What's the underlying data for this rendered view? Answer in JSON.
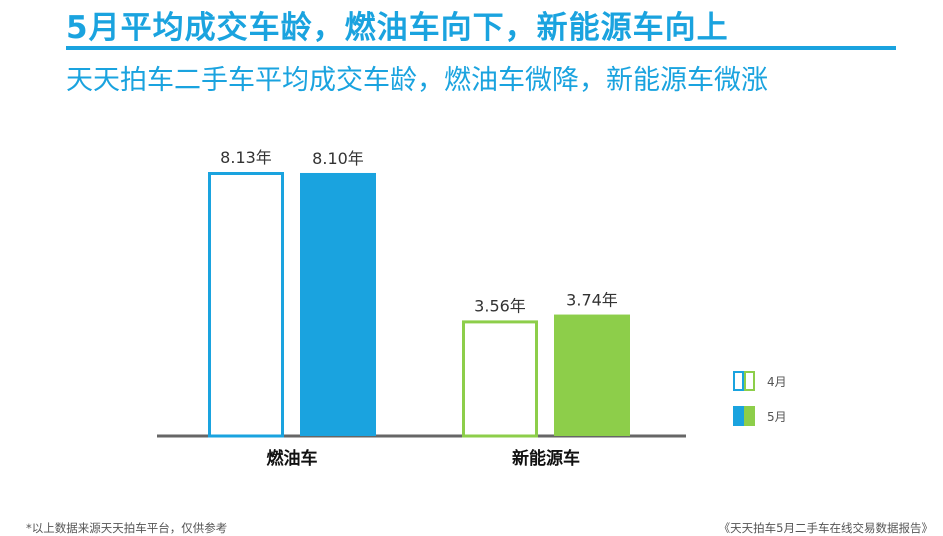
{
  "header": {
    "title": "5月平均成交车龄，燃油车向下，新能源车向上",
    "subtitle": "天天拍车二手车平均成交车龄，燃油车微降，新能源车微涨"
  },
  "footer": {
    "note": "*以上数据来源天天拍车平台，仅供参考",
    "source": "《天天拍车5月二手车在线交易数据报告》"
  },
  "colors": {
    "fuel": "#1aa3df",
    "ev": "#8dce4a",
    "axis": "#666666",
    "accent": "#1aa3df"
  },
  "chart_data": {
    "type": "bar",
    "categories": [
      "燃油车",
      "新能源车"
    ],
    "series": [
      {
        "name": "4月",
        "values": [
          8.13,
          3.56
        ],
        "labels": [
          "8.13年",
          "3.56年"
        ],
        "style": "outline"
      },
      {
        "name": "5月",
        "values": [
          8.1,
          3.74
        ],
        "labels": [
          "8.10年",
          "3.74年"
        ],
        "style": "filled"
      }
    ],
    "ylim": [
      0,
      9
    ],
    "unit": "年",
    "grid": false,
    "legend": "right"
  }
}
